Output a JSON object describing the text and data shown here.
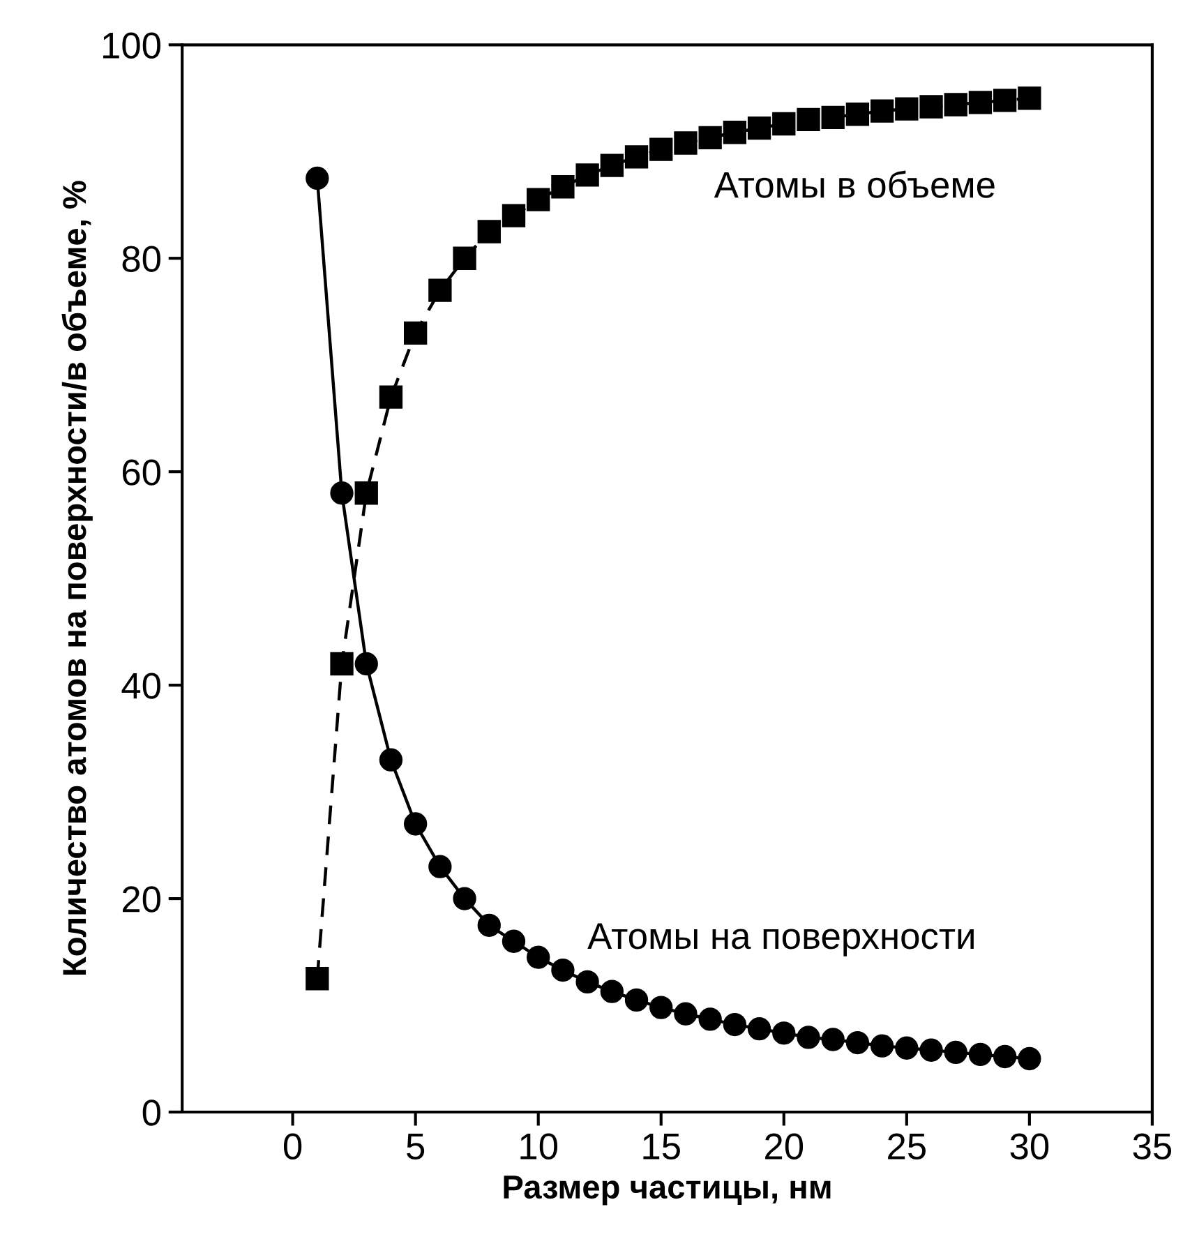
{
  "chart_data": {
    "type": "line",
    "xlabel": "Размер частицы, нм",
    "ylabel": "Количество атомов на поверхности/в объеме, %",
    "x": [
      1,
      2,
      3,
      4,
      5,
      6,
      7,
      8,
      9,
      10,
      11,
      12,
      13,
      14,
      15,
      16,
      17,
      18,
      19,
      20,
      21,
      22,
      23,
      24,
      25,
      26,
      27,
      28,
      29,
      30
    ],
    "series": [
      {
        "name": "Атомы в объеме",
        "color": "#000000",
        "marker": "square",
        "line_style": "dashed",
        "values": [
          12.5,
          42,
          58,
          67,
          73,
          77,
          80,
          82.5,
          84,
          85.5,
          86.7,
          87.8,
          88.7,
          89.5,
          90.2,
          90.8,
          91.3,
          91.8,
          92.2,
          92.6,
          93,
          93.2,
          93.5,
          93.8,
          94,
          94.2,
          94.4,
          94.6,
          94.8,
          95
        ]
      },
      {
        "name": "Атомы на поверхности",
        "color": "#000000",
        "marker": "circle",
        "line_style": "solid",
        "values": [
          87.5,
          58,
          42,
          33,
          27,
          23,
          20,
          17.5,
          16,
          14.5,
          13.3,
          12.2,
          11.3,
          10.5,
          9.8,
          9.2,
          8.7,
          8.2,
          7.8,
          7.4,
          7,
          6.8,
          6.5,
          6.2,
          6,
          5.8,
          5.6,
          5.4,
          5.2,
          5
        ]
      }
    ],
    "xlim": [
      -4.5,
      35
    ],
    "xticks": [
      0,
      5,
      10,
      15,
      20,
      25,
      30,
      35
    ],
    "ylim": [
      0,
      100
    ],
    "yticks": [
      0,
      20,
      40,
      60,
      80,
      100
    ],
    "grid": false,
    "legend": false
  }
}
